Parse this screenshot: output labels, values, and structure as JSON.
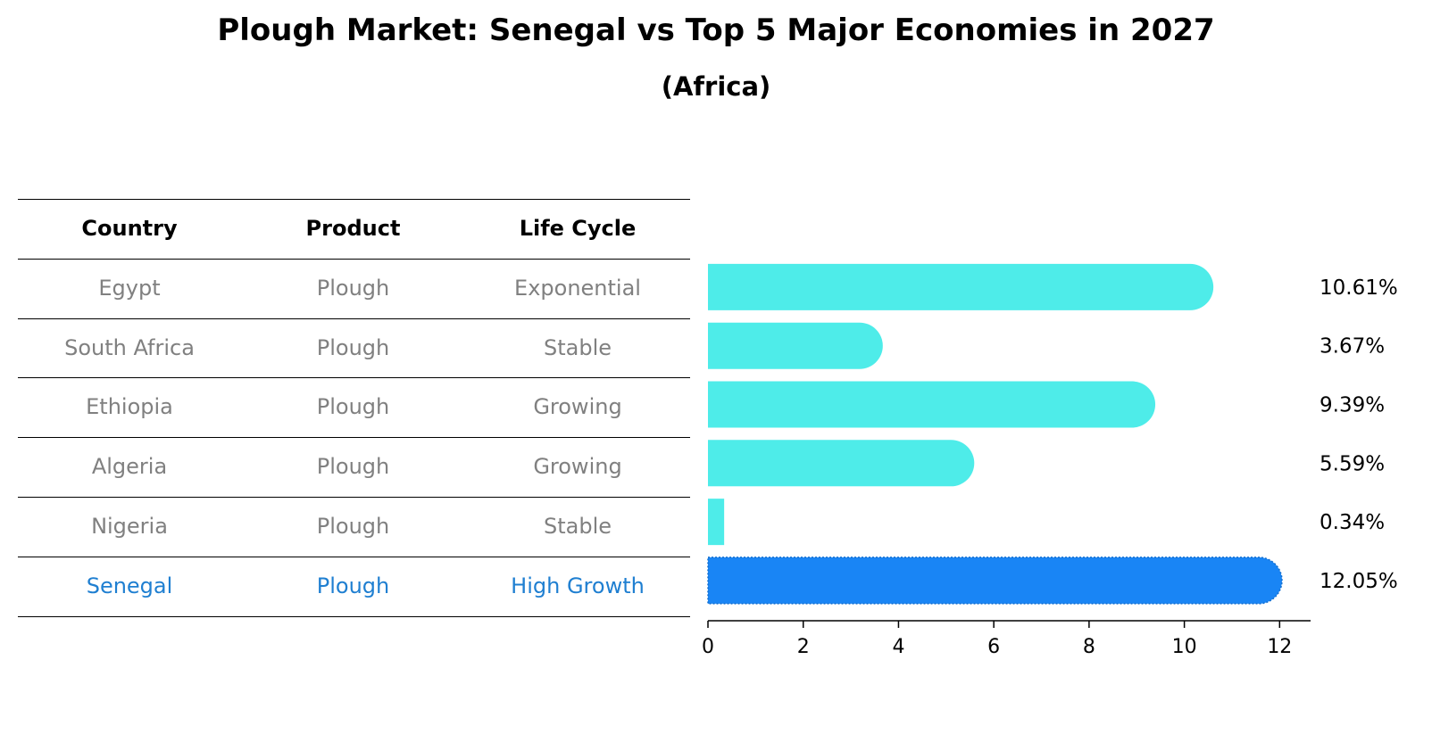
{
  "title": "Plough Market: Senegal vs Top 5 Major Economies in 2027",
  "subtitle": "(Africa)",
  "table": {
    "headers": [
      "Country",
      "Product",
      "Life Cycle"
    ],
    "rows": [
      [
        "Egypt",
        "Plough",
        "Exponential"
      ],
      [
        "South Africa",
        "Plough",
        "Stable"
      ],
      [
        "Ethiopia",
        "Plough",
        "Growing"
      ],
      [
        "Algeria",
        "Plough",
        "Growing"
      ],
      [
        "Nigeria",
        "Plough",
        "Stable"
      ],
      [
        "Senegal",
        "Plough",
        "High Growth"
      ]
    ],
    "highlight_row": 5
  },
  "colors": {
    "bar": "#4eece9",
    "highlight_bar": "#1985f5",
    "highlight_text": "#1f7fd1",
    "muted_text": "#808080"
  },
  "chart_data": {
    "type": "bar",
    "orientation": "horizontal",
    "categories": [
      "Egypt",
      "South Africa",
      "Ethiopia",
      "Algeria",
      "Nigeria",
      "Senegal"
    ],
    "values": [
      10.61,
      3.67,
      9.39,
      5.59,
      0.34,
      12.05
    ],
    "labels": [
      "10.61%",
      "3.67%",
      "9.39%",
      "5.59%",
      "0.34%",
      "12.05%"
    ],
    "highlight_index": 5,
    "xlim": [
      0,
      12.65
    ],
    "xticks": [
      0,
      2,
      4,
      6,
      8,
      10,
      12
    ],
    "xlabel": "",
    "ylabel": ""
  }
}
